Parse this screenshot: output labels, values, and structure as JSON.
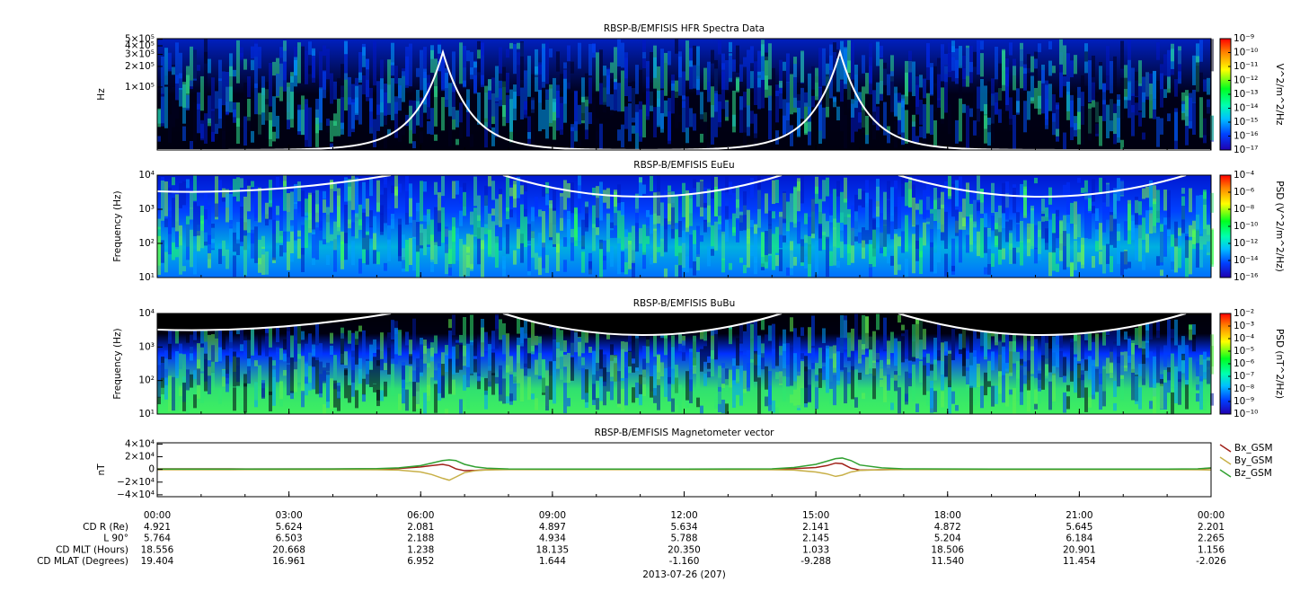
{
  "chart_data": [
    {
      "type": "heatmap",
      "title": "RBSP-B/EMFISIS  HFR Spectra Data",
      "y_label": "Hz",
      "colorbar_label": "V^2/m^2/Hz",
      "xlim": [
        0,
        24
      ],
      "ylim": [
        12000,
        510000
      ],
      "log_y": true,
      "yticks": [
        {
          "value": 100000,
          "label": "1×10⁵"
        },
        {
          "value": 200000,
          "label": "2×10⁵"
        },
        {
          "value": 300000,
          "label": "3×10⁵"
        },
        {
          "value": 400000,
          "label": "4×10⁵"
        },
        {
          "value": 500000,
          "label": "5×10⁵"
        }
      ],
      "zlim": [
        1e-17,
        1e-09
      ],
      "log_z": true,
      "zticks": [
        {
          "value": 1e-09,
          "label": "10⁻⁹"
        },
        {
          "value": 1e-10,
          "label": "10⁻¹⁰"
        },
        {
          "value": 1e-11,
          "label": "10⁻¹¹"
        },
        {
          "value": 1e-12,
          "label": "10⁻¹²"
        },
        {
          "value": 1e-13,
          "label": "10⁻¹³"
        },
        {
          "value": 1e-14,
          "label": "10⁻¹⁴"
        },
        {
          "value": 1e-15,
          "label": "10⁻¹⁵"
        },
        {
          "value": 1e-16,
          "label": "10⁻¹⁶"
        },
        {
          "value": 1e-17,
          "label": "10⁻¹⁷"
        }
      ]
    },
    {
      "type": "heatmap",
      "title": "RBSP-B/EMFISIS  EuEu",
      "y_label": "Frequency (Hz)",
      "colorbar_label": "PSD (V^2/m^2/Hz)",
      "xlim": [
        0,
        24
      ],
      "ylim": [
        10,
        10000
      ],
      "log_y": true,
      "yticks": [
        {
          "value": 10,
          "label": "10¹"
        },
        {
          "value": 100,
          "label": "10²"
        },
        {
          "value": 1000,
          "label": "10³"
        },
        {
          "value": 10000,
          "label": "10⁴"
        }
      ],
      "zlim": [
        1e-16,
        0.0001
      ],
      "log_z": true,
      "zticks": [
        {
          "value": 0.0001,
          "label": "10⁻⁴"
        },
        {
          "value": 1e-06,
          "label": "10⁻⁶"
        },
        {
          "value": 1e-08,
          "label": "10⁻⁸"
        },
        {
          "value": 1e-10,
          "label": "10⁻¹⁰"
        },
        {
          "value": 1e-12,
          "label": "10⁻¹²"
        },
        {
          "value": 1e-14,
          "label": "10⁻¹⁴"
        },
        {
          "value": 1e-16,
          "label": "10⁻¹⁶"
        }
      ]
    },
    {
      "type": "heatmap",
      "title": "RBSP-B/EMFISIS  BuBu",
      "y_label": "Frequency (Hz)",
      "colorbar_label": "PSD (nT^2/Hz)",
      "xlim": [
        0,
        24
      ],
      "ylim": [
        10,
        10000
      ],
      "log_y": true,
      "yticks": [
        {
          "value": 10,
          "label": "10¹"
        },
        {
          "value": 100,
          "label": "10²"
        },
        {
          "value": 1000,
          "label": "10³"
        },
        {
          "value": 10000,
          "label": "10⁴"
        }
      ],
      "zlim": [
        1e-10,
        0.01
      ],
      "log_z": true,
      "zticks": [
        {
          "value": 0.01,
          "label": "10⁻²"
        },
        {
          "value": 0.001,
          "label": "10⁻³"
        },
        {
          "value": 0.0001,
          "label": "10⁻⁴"
        },
        {
          "value": 1e-05,
          "label": "10⁻⁵"
        },
        {
          "value": 1e-06,
          "label": "10⁻⁶"
        },
        {
          "value": 1e-07,
          "label": "10⁻⁷"
        },
        {
          "value": 1e-08,
          "label": "10⁻⁸"
        },
        {
          "value": 1e-09,
          "label": "10⁻⁹"
        },
        {
          "value": 1e-10,
          "label": "10⁻¹⁰"
        }
      ]
    },
    {
      "type": "line",
      "title": "RBSP-B/EMFISIS  Magnetometer vector",
      "y_label": "nT",
      "legend": "outside-right",
      "xlim": [
        0,
        24
      ],
      "ylim": [
        -43000,
        42000
      ],
      "yticks": [
        {
          "value": -40000,
          "label": "−4×10⁴"
        },
        {
          "value": -20000,
          "label": "−2×10⁴"
        },
        0,
        {
          "value": 20000,
          "label": "2×10⁴"
        },
        {
          "value": 40000,
          "label": "4×10⁴"
        }
      ],
      "xticks": [
        {
          "value": 0,
          "label": "00:00"
        },
        {
          "value": 3,
          "label": "03:00"
        },
        {
          "value": 6,
          "label": "06:00"
        },
        {
          "value": 9,
          "label": "09:00"
        },
        {
          "value": 12,
          "label": "12:00"
        },
        {
          "value": 15,
          "label": "15:00"
        },
        {
          "value": 18,
          "label": "18:00"
        },
        {
          "value": 21,
          "label": "21:00"
        },
        {
          "value": 24,
          "label": "00:00"
        }
      ],
      "x": [
        0,
        2,
        4,
        5,
        5.5,
        6,
        6.25,
        6.5,
        6.65,
        6.8,
        7,
        7.25,
        7.5,
        8,
        10,
        12,
        14,
        14.5,
        15,
        15.25,
        15.45,
        15.6,
        15.8,
        16,
        16.5,
        17,
        19,
        21,
        23,
        23.7,
        24
      ],
      "series": [
        {
          "name": "Bx_GSM",
          "color": "#a02018",
          "values": [
            1000,
            800,
            700,
            900,
            1500,
            4000,
            6000,
            8000,
            6000,
            1000,
            -2000,
            -1500,
            -500,
            300,
            300,
            300,
            600,
            1200,
            3000,
            6000,
            10000,
            9000,
            2000,
            -1000,
            -500,
            300,
            300,
            300,
            300,
            800,
            2000
          ]
        },
        {
          "name": "By_GSM",
          "color": "#c8b048",
          "values": [
            -500,
            -400,
            -300,
            -500,
            -1000,
            -4000,
            -8000,
            -14000,
            -17000,
            -12000,
            -5000,
            -2000,
            -800,
            -300,
            -300,
            -300,
            -500,
            -1000,
            -4000,
            -7000,
            -11000,
            -9000,
            -4000,
            -1500,
            -500,
            -300,
            -300,
            -300,
            -300,
            -500,
            -800
          ]
        },
        {
          "name": "Bz_GSM",
          "color": "#30a030",
          "values": [
            500,
            600,
            800,
            1200,
            2500,
            6000,
            10000,
            14000,
            15000,
            14000,
            8000,
            4000,
            2000,
            800,
            500,
            500,
            1000,
            3000,
            8000,
            13000,
            17000,
            18000,
            14000,
            7000,
            2500,
            1000,
            600,
            500,
            500,
            1000,
            2500
          ]
        }
      ]
    }
  ],
  "ephemeris": {
    "rows": [
      {
        "label": "CD R (Re)",
        "values": [
          "4.921",
          "5.624",
          "2.081",
          "4.897",
          "5.634",
          "2.141",
          "4.872",
          "5.645",
          "2.201"
        ]
      },
      {
        "label": "L 90°",
        "values": [
          "5.764",
          "6.503",
          "2.188",
          "4.934",
          "5.788",
          "2.145",
          "5.204",
          "6.184",
          "2.265"
        ]
      },
      {
        "label": "CD MLT (Hours)",
        "values": [
          "18.556",
          "20.668",
          "1.238",
          "18.135",
          "20.350",
          "1.033",
          "18.506",
          "20.901",
          "1.156"
        ]
      },
      {
        "label": "CD MLAT (Degrees)",
        "values": [
          "19.404",
          "16.961",
          "6.952",
          "1.644",
          "-1.160",
          "-9.288",
          "11.540",
          "11.454",
          "-2.026"
        ]
      }
    ],
    "date": "2013-07-26 (207)"
  }
}
